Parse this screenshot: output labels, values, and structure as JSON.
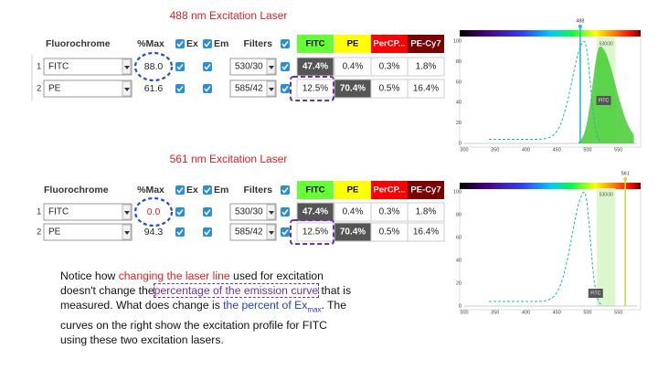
{
  "panels": [
    {
      "title": "488 nm Excitation Laser",
      "headers": {
        "fluorochrome": "Fluorochrome",
        "max": "%Max",
        "ex": "Ex",
        "em": "Em",
        "filters": "Filters"
      },
      "columns": [
        "FITC",
        "PE",
        "PerCP...",
        "PE-Cy7"
      ],
      "rows": [
        {
          "index": "1",
          "name": "FITC",
          "max": "88.0",
          "filter": "530/30",
          "values": [
            "47.4%",
            "0.4%",
            "0.3%",
            "1.8%"
          ]
        },
        {
          "index": "2",
          "name": "PE",
          "max": "61.6",
          "filter": "585/42",
          "values": [
            "12.5%",
            "70.4%",
            "0.5%",
            "16.4%"
          ]
        }
      ]
    },
    {
      "title": "561  nm Excitation Laser",
      "headers": {
        "fluorochrome": "Fluorochrome",
        "max": "%Max",
        "ex": "Ex",
        "em": "Em",
        "filters": "Filters"
      },
      "columns": [
        "FITC",
        "PE",
        "PerCP...",
        "PE-Cy7"
      ],
      "rows": [
        {
          "index": "1",
          "name": "FITC",
          "max": "0.0",
          "filter": "530/30",
          "values": [
            "47.4%",
            "0.4%",
            "0.3%",
            "1.8%"
          ]
        },
        {
          "index": "2",
          "name": "PE",
          "max": "94.3",
          "filter": "585/42",
          "values": [
            "12.5%",
            "70.4%",
            "0.5%",
            "16.4%"
          ]
        }
      ]
    }
  ],
  "spectra": [
    {
      "laser": "488",
      "dye": "FITC",
      "filter": "530/30",
      "yticks": [
        "100",
        "80",
        "60",
        "40",
        "20",
        "0"
      ],
      "xticks": [
        "300",
        "350",
        "400",
        "450",
        "500",
        "550"
      ]
    },
    {
      "laser": "561",
      "dye": "FITC",
      "filter": "530/30",
      "yticks": [
        "100",
        "80",
        "60",
        "40",
        "20",
        "0"
      ],
      "xticks": [
        "300",
        "350",
        "400",
        "450",
        "500",
        "550"
      ]
    }
  ],
  "note": {
    "l1a": "Notice how ",
    "l1b": "changing the laser line",
    "l1c": " used for excitation",
    "l2a": "doesn't change the",
    "l2b": "percentage of the emission curve",
    "l2c": " that is",
    "l3a": "measured.  What does change is ",
    "l3b": "the percent of Ex",
    "l3sub": "max",
    "l3c": ".  The",
    "l4": "curves on the right show the excitation profile for FITC",
    "l5": "using these two excitation lasers."
  }
}
